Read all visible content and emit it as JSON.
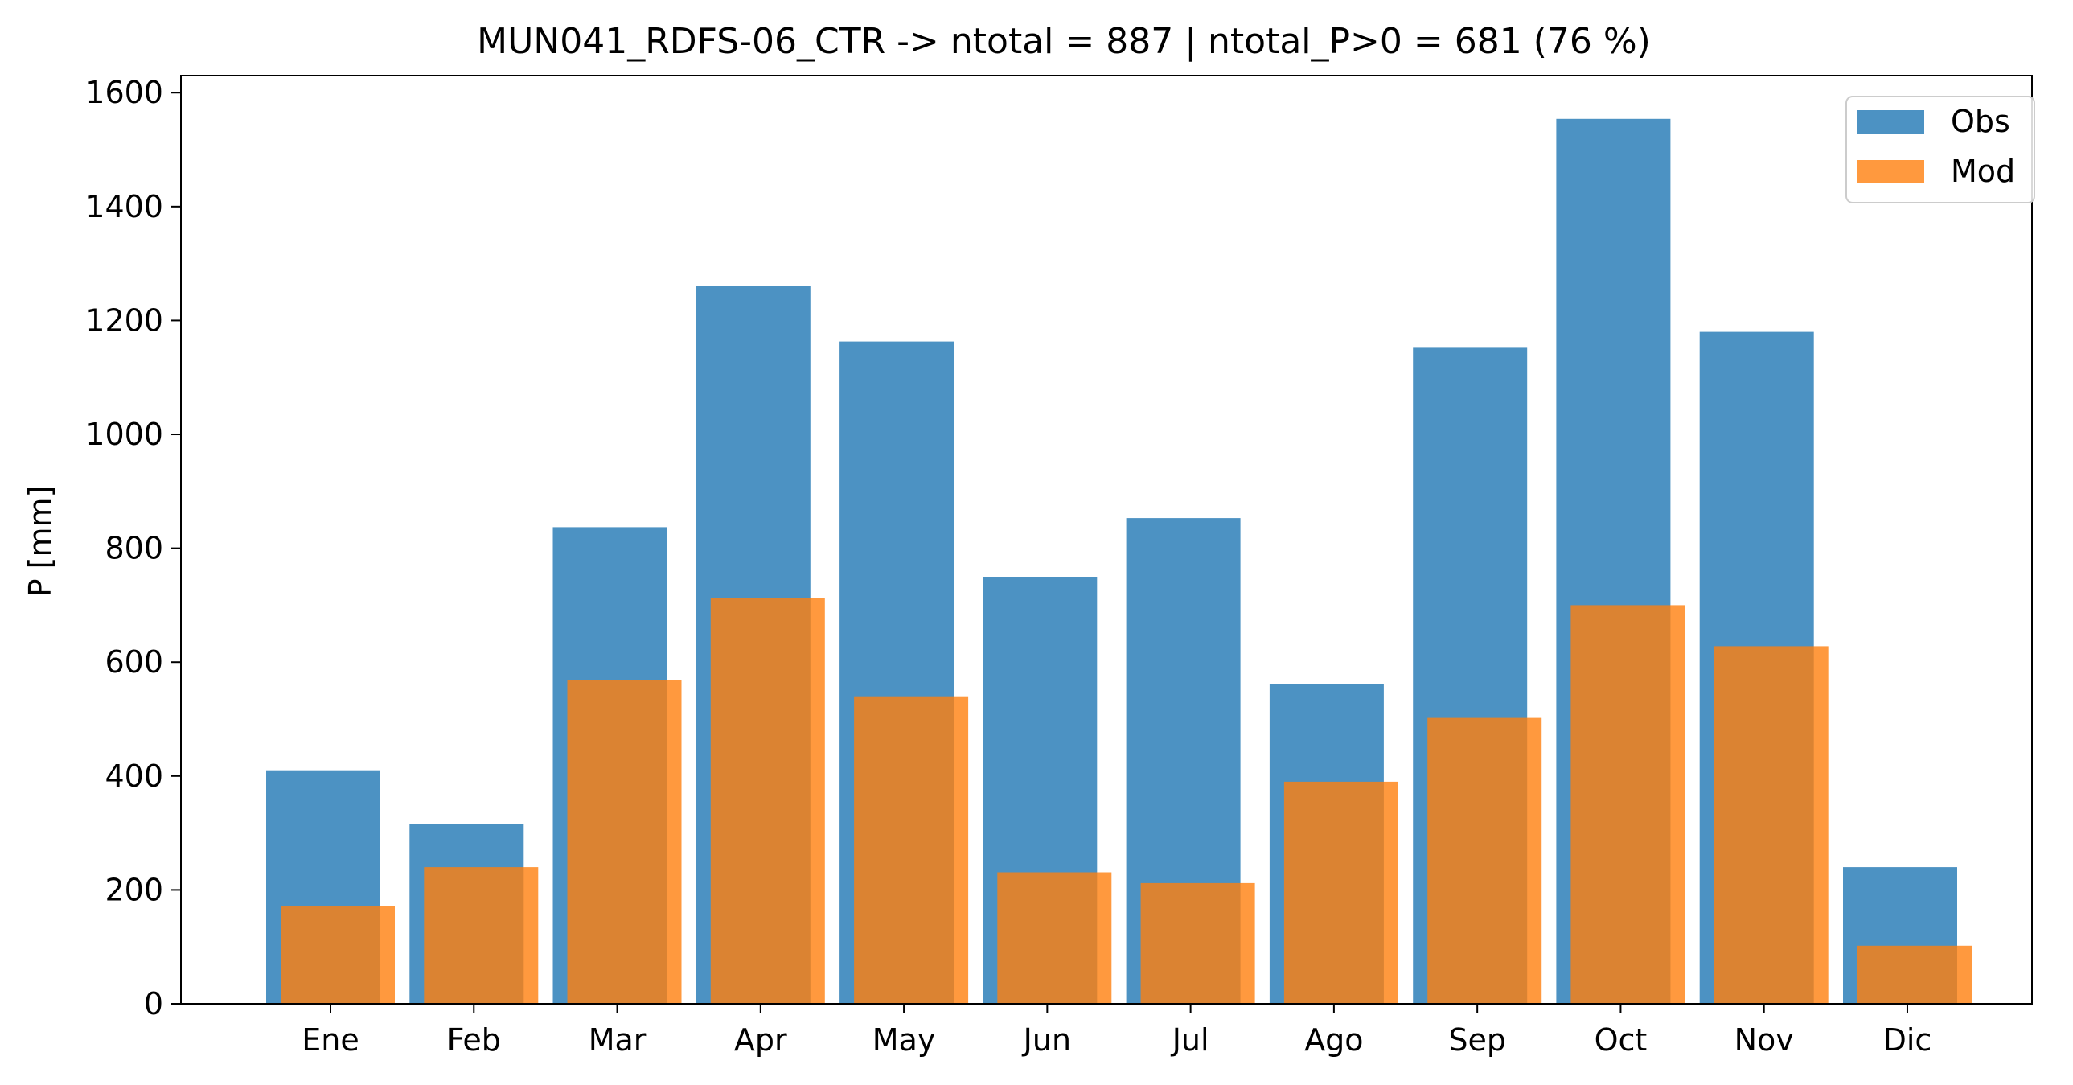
{
  "chart_data": {
    "type": "bar",
    "title": "MUN041_RDFS-06_CTR -> ntotal = 887 | ntotal_P>0 = 681 (76 %)",
    "xlabel": "",
    "ylabel": "P [mm]",
    "ylim": [
      0,
      1630
    ],
    "yticks": [
      0,
      200,
      400,
      600,
      800,
      1000,
      1200,
      1400,
      1600
    ],
    "categories": [
      "Ene",
      "Feb",
      "Mar",
      "Apr",
      "May",
      "Jun",
      "Jul",
      "Ago",
      "Sep",
      "Oct",
      "Nov",
      "Dic"
    ],
    "series": [
      {
        "name": "Obs",
        "color": "#1f77b4",
        "opacity": 0.8,
        "values": [
          410,
          316,
          837,
          1260,
          1163,
          749,
          853,
          561,
          1152,
          1554,
          1180,
          240
        ]
      },
      {
        "name": "Mod",
        "color": "#ff7f0e",
        "opacity": 0.8,
        "values": [
          171,
          240,
          568,
          712,
          540,
          231,
          212,
          390,
          502,
          700,
          628,
          102
        ]
      }
    ],
    "grid": false,
    "legend_position": "top-right"
  }
}
